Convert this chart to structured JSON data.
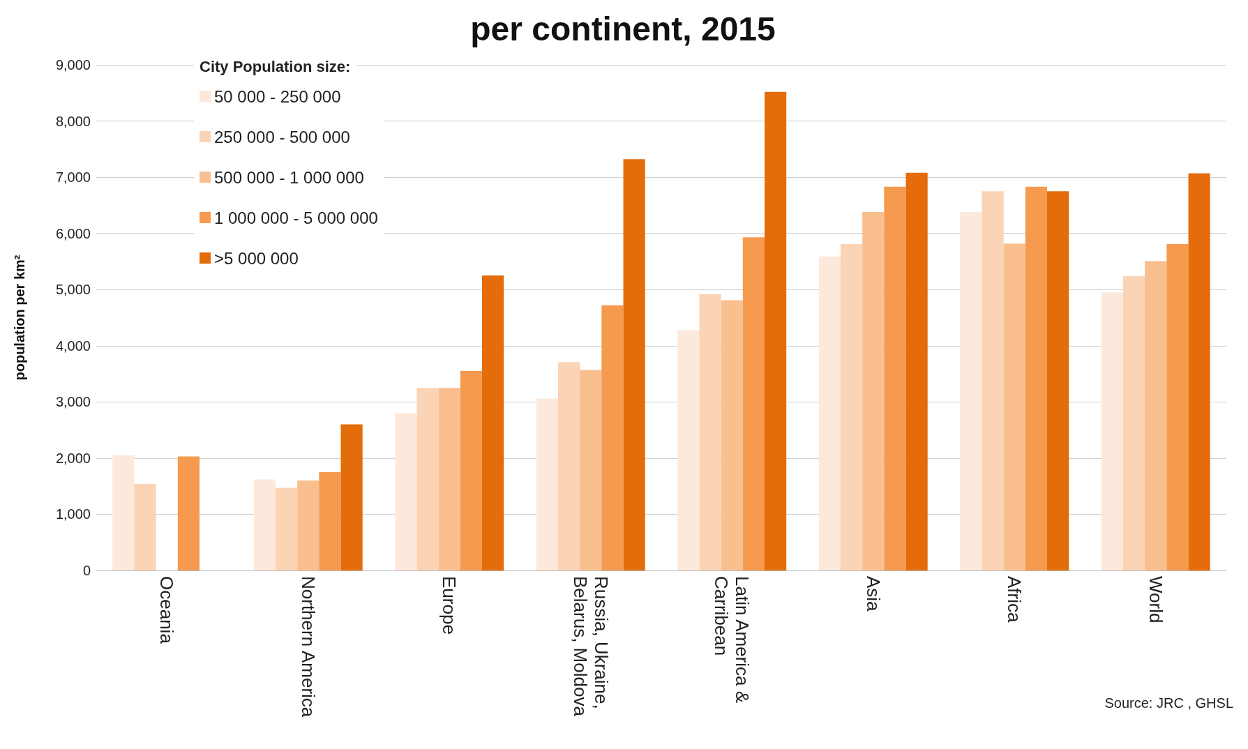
{
  "chart_data": {
    "type": "bar",
    "title": "per continent, 2015",
    "ylabel": "population per km²",
    "legend_title": "City Population size:",
    "legend": "top left",
    "categories": [
      "Oceania",
      "Northern America",
      "Europe",
      "Russia, Ukraine, Belarus, Moldova",
      "Latin America & Carribean",
      "Asia",
      "Africa",
      "World"
    ],
    "series": [
      {
        "name": "50 000 - 250 000",
        "color": "#fde9dc",
        "values": [
          2050,
          1620,
          2800,
          3060,
          4280,
          5590,
          6380,
          4950
        ]
      },
      {
        "name": "250 000 - 500 000",
        "color": "#fbd3b5",
        "values": [
          1540,
          1470,
          3250,
          3710,
          4920,
          5810,
          6750,
          5240
        ]
      },
      {
        "name": "500 000 - 1 000 000",
        "color": "#f9bf8f",
        "values": [
          null,
          1600,
          3250,
          3570,
          4810,
          6380,
          5820,
          5510
        ]
      },
      {
        "name": "1 000 000 - 5 000 000",
        "color": "#f59a4e",
        "values": [
          2030,
          1750,
          3550,
          4720,
          5930,
          6830,
          6830,
          5810
        ]
      },
      {
        "name": ">5 000 000",
        "color": "#e46c0a",
        "values": [
          null,
          2600,
          5250,
          7320,
          8520,
          7080,
          6750,
          7070
        ]
      }
    ],
    "ylim": [
      0,
      9000
    ],
    "yticks": [
      0,
      {
        "value": 1000,
        "label": "1,000"
      },
      {
        "value": 2000,
        "label": "2,000"
      },
      {
        "value": 3000,
        "label": "3,000"
      },
      {
        "value": 4000,
        "label": "4,000"
      },
      {
        "value": 5000,
        "label": "5,000"
      },
      {
        "value": 6000,
        "label": "6,000"
      },
      {
        "value": 7000,
        "label": "7,000"
      },
      {
        "value": 8000,
        "label": "8,000"
      },
      {
        "value": 9000,
        "label": "9,000"
      }
    ],
    "grid": "y",
    "annotations": [
      "Source: JRC , GHSL"
    ]
  }
}
